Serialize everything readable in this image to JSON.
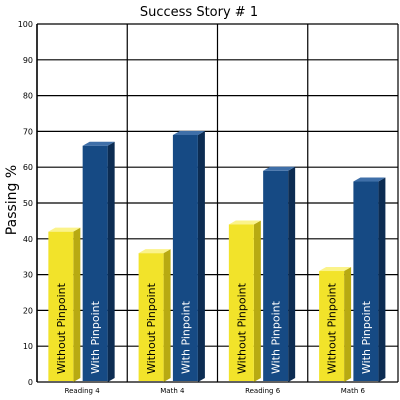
{
  "chart_data": {
    "type": "bar",
    "title": "Success Story # 1",
    "xlabel": "",
    "ylabel": "Passing %",
    "ylim": [
      0,
      100
    ],
    "yticks": [
      0,
      10,
      20,
      30,
      40,
      50,
      60,
      70,
      80,
      90,
      100
    ],
    "categories": [
      "Reading 4",
      "Math 4",
      "Reading 6",
      "Math 6"
    ],
    "grid": true,
    "legend": "none",
    "series": [
      {
        "name": "Without Pinpoint",
        "values": [
          42,
          36,
          44,
          31
        ],
        "color": "#f2e32a",
        "side_color": "#b8aa12",
        "top_color": "#fbf38a",
        "text_color": "#000000"
      },
      {
        "name": "With Pinpoint",
        "values": [
          66,
          69,
          59,
          56
        ],
        "color": "#164a84",
        "side_color": "#0c2c52",
        "top_color": "#3f6fa8",
        "text_color": "#ffffff"
      }
    ]
  }
}
